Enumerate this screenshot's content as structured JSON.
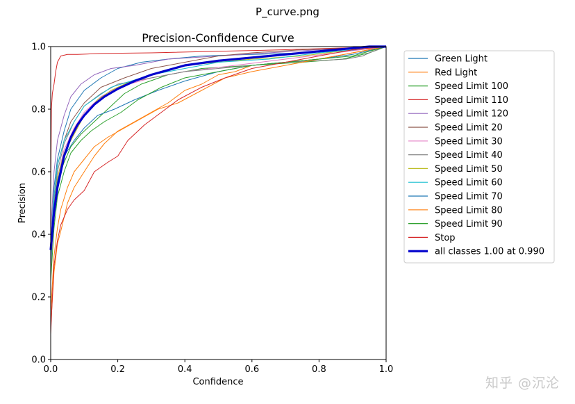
{
  "page": {
    "title": "P_curve.png",
    "watermark": "知乎 @沉沦"
  },
  "chart_data": {
    "type": "line",
    "title": "Precision-Confidence Curve",
    "xlabel": "Confidence",
    "ylabel": "Precision",
    "xlim": [
      0,
      1
    ],
    "ylim": [
      0,
      1
    ],
    "xticks": [
      "0.0",
      "0.2",
      "0.4",
      "0.6",
      "0.8",
      "1.0"
    ],
    "yticks": [
      "0.0",
      "0.2",
      "0.4",
      "0.6",
      "0.8",
      "1.0"
    ],
    "grid": false,
    "legend_position": "outside-right",
    "series": [
      {
        "name": "Green Light",
        "color": "#1f77b4",
        "width": 1,
        "x": [
          0,
          0.01,
          0.02,
          0.04,
          0.06,
          0.1,
          0.15,
          0.2,
          0.27,
          0.35,
          0.45,
          0.6,
          0.75,
          0.85,
          0.92,
          0.99,
          1.0
        ],
        "y": [
          0.35,
          0.55,
          0.64,
          0.73,
          0.8,
          0.86,
          0.9,
          0.93,
          0.95,
          0.96,
          0.97,
          0.975,
          0.98,
          0.985,
          0.99,
          1.0,
          1.0
        ]
      },
      {
        "name": "Red Light",
        "color": "#ff7f0e",
        "width": 1,
        "x": [
          0,
          0.01,
          0.02,
          0.03,
          0.05,
          0.07,
          0.1,
          0.13,
          0.16,
          0.2,
          0.25,
          0.3,
          0.35,
          0.4,
          0.45,
          0.5,
          0.55,
          0.6,
          0.7,
          0.8,
          0.9,
          1.0
        ],
        "y": [
          0.1,
          0.28,
          0.37,
          0.41,
          0.5,
          0.55,
          0.6,
          0.65,
          0.69,
          0.73,
          0.76,
          0.79,
          0.82,
          0.86,
          0.88,
          0.91,
          0.92,
          0.94,
          0.95,
          0.96,
          0.98,
          1.0
        ]
      },
      {
        "name": "Speed Limit 100",
        "color": "#2ca02c",
        "width": 1,
        "x": [
          0,
          0.01,
          0.02,
          0.04,
          0.06,
          0.09,
          0.13,
          0.17,
          0.22,
          0.27,
          0.35,
          0.45,
          0.6,
          0.75,
          0.87,
          0.95,
          1.0
        ],
        "y": [
          0.3,
          0.48,
          0.57,
          0.63,
          0.68,
          0.72,
          0.76,
          0.8,
          0.85,
          0.88,
          0.91,
          0.93,
          0.94,
          0.95,
          0.96,
          0.98,
          1.0
        ]
      },
      {
        "name": "Speed Limit 110",
        "color": "#d62728",
        "width": 1,
        "x": [
          0,
          0.002,
          0.005,
          0.01,
          0.015,
          0.02,
          0.03,
          0.05,
          0.08,
          0.15,
          0.3,
          0.5,
          0.7,
          0.85,
          1.0
        ],
        "y": [
          0.5,
          0.8,
          0.85,
          0.88,
          0.92,
          0.95,
          0.97,
          0.975,
          0.975,
          0.978,
          0.98,
          0.985,
          0.99,
          0.995,
          1.0
        ]
      },
      {
        "name": "Speed Limit 120",
        "color": "#9467bd",
        "width": 1,
        "x": [
          0,
          0.01,
          0.02,
          0.04,
          0.06,
          0.09,
          0.13,
          0.18,
          0.25,
          0.35,
          0.5,
          0.65,
          0.8,
          1.0
        ],
        "y": [
          0.4,
          0.6,
          0.7,
          0.78,
          0.84,
          0.88,
          0.91,
          0.93,
          0.94,
          0.96,
          0.97,
          0.98,
          0.99,
          1.0
        ]
      },
      {
        "name": "Speed Limit 20",
        "color": "#8c564b",
        "width": 1,
        "x": [
          0,
          0.01,
          0.02,
          0.04,
          0.06,
          0.1,
          0.15,
          0.22,
          0.3,
          0.4,
          0.5,
          0.6,
          0.75,
          0.9,
          1.0
        ],
        "y": [
          0.3,
          0.52,
          0.62,
          0.7,
          0.76,
          0.82,
          0.87,
          0.9,
          0.93,
          0.95,
          0.97,
          0.98,
          0.99,
          0.995,
          1.0
        ]
      },
      {
        "name": "Speed Limit 30",
        "color": "#e377c2",
        "width": 1,
        "x": [
          0,
          0.01,
          0.02,
          0.04,
          0.07,
          0.1,
          0.15,
          0.2,
          0.3,
          0.4,
          0.55,
          0.7,
          0.85,
          1.0
        ],
        "y": [
          0.28,
          0.47,
          0.58,
          0.67,
          0.74,
          0.79,
          0.84,
          0.87,
          0.9,
          0.92,
          0.94,
          0.96,
          0.98,
          1.0
        ]
      },
      {
        "name": "Speed Limit 40",
        "color": "#7f7f7f",
        "width": 1,
        "x": [
          0,
          0.01,
          0.02,
          0.04,
          0.07,
          0.1,
          0.15,
          0.2,
          0.3,
          0.4,
          0.5,
          0.6,
          0.7,
          0.8,
          0.88,
          0.93,
          0.95,
          1.0
        ],
        "y": [
          0.3,
          0.5,
          0.6,
          0.69,
          0.76,
          0.81,
          0.85,
          0.88,
          0.9,
          0.92,
          0.93,
          0.94,
          0.95,
          0.955,
          0.96,
          0.97,
          0.98,
          1.0
        ]
      },
      {
        "name": "Speed Limit 50",
        "color": "#bcbd22",
        "width": 1,
        "x": [
          0,
          0.01,
          0.02,
          0.04,
          0.07,
          0.1,
          0.14,
          0.18,
          0.22,
          0.27,
          0.33,
          0.4,
          0.5,
          0.6,
          0.75,
          0.9,
          1.0
        ],
        "y": [
          0.3,
          0.48,
          0.58,
          0.66,
          0.72,
          0.78,
          0.83,
          0.86,
          0.88,
          0.9,
          0.92,
          0.94,
          0.95,
          0.96,
          0.97,
          0.99,
          1.0
        ]
      },
      {
        "name": "Speed Limit 60",
        "color": "#17becf",
        "width": 1,
        "x": [
          0,
          0.01,
          0.02,
          0.04,
          0.07,
          0.1,
          0.14,
          0.18,
          0.24,
          0.3,
          0.4,
          0.5,
          0.65,
          0.8,
          1.0
        ],
        "y": [
          0.32,
          0.52,
          0.62,
          0.7,
          0.76,
          0.81,
          0.84,
          0.87,
          0.89,
          0.91,
          0.93,
          0.95,
          0.96,
          0.98,
          1.0
        ]
      },
      {
        "name": "Speed Limit 70",
        "color": "#1f77b4",
        "width": 1,
        "x": [
          0,
          0.01,
          0.02,
          0.04,
          0.07,
          0.1,
          0.14,
          0.19,
          0.25,
          0.32,
          0.4,
          0.5,
          0.6,
          0.7,
          0.8,
          0.9,
          1.0
        ],
        "y": [
          0.3,
          0.48,
          0.57,
          0.65,
          0.7,
          0.74,
          0.78,
          0.8,
          0.83,
          0.86,
          0.89,
          0.92,
          0.94,
          0.95,
          0.96,
          0.975,
          1.0
        ]
      },
      {
        "name": "Speed Limit 80",
        "color": "#ff7f0e",
        "width": 1,
        "x": [
          0,
          0.01,
          0.02,
          0.03,
          0.05,
          0.07,
          0.1,
          0.13,
          0.17,
          0.22,
          0.27,
          0.32,
          0.38,
          0.45,
          0.52,
          0.6,
          0.7,
          0.8,
          0.9,
          1.0
        ],
        "y": [
          0.15,
          0.33,
          0.42,
          0.48,
          0.55,
          0.6,
          0.64,
          0.68,
          0.71,
          0.74,
          0.77,
          0.8,
          0.82,
          0.86,
          0.9,
          0.92,
          0.94,
          0.96,
          0.98,
          1.0
        ]
      },
      {
        "name": "Speed Limit 90",
        "color": "#2ca02c",
        "width": 1,
        "x": [
          0,
          0.01,
          0.02,
          0.04,
          0.06,
          0.09,
          0.12,
          0.16,
          0.21,
          0.26,
          0.33,
          0.4,
          0.5,
          0.6,
          0.7,
          0.8,
          0.9,
          1.0
        ],
        "y": [
          0.25,
          0.42,
          0.52,
          0.6,
          0.66,
          0.7,
          0.73,
          0.76,
          0.79,
          0.83,
          0.87,
          0.9,
          0.92,
          0.94,
          0.95,
          0.96,
          0.97,
          1.0
        ]
      },
      {
        "name": "Stop",
        "color": "#d62728",
        "width": 1,
        "x": [
          0,
          0.005,
          0.01,
          0.02,
          0.03,
          0.05,
          0.07,
          0.1,
          0.13,
          0.17,
          0.2,
          0.23,
          0.28,
          0.33,
          0.38,
          0.45,
          0.52,
          0.6,
          0.7,
          0.8,
          0.9,
          1.0
        ],
        "y": [
          0.08,
          0.2,
          0.3,
          0.38,
          0.43,
          0.48,
          0.51,
          0.54,
          0.6,
          0.63,
          0.65,
          0.7,
          0.75,
          0.79,
          0.83,
          0.87,
          0.9,
          0.93,
          0.95,
          0.97,
          0.99,
          1.0
        ]
      },
      {
        "name": "all classes 1.00 at 0.990",
        "color": "#0000cc",
        "width": 3.2,
        "x": [
          0,
          0.01,
          0.02,
          0.03,
          0.04,
          0.06,
          0.08,
          0.1,
          0.13,
          0.16,
          0.2,
          0.25,
          0.3,
          0.35,
          0.4,
          0.5,
          0.6,
          0.7,
          0.8,
          0.9,
          0.95,
          0.99,
          1.0
        ],
        "y": [
          0.35,
          0.47,
          0.55,
          0.6,
          0.65,
          0.71,
          0.75,
          0.78,
          0.815,
          0.84,
          0.865,
          0.89,
          0.91,
          0.925,
          0.94,
          0.955,
          0.965,
          0.975,
          0.985,
          0.995,
          1.0,
          1.0,
          1.0
        ]
      }
    ]
  }
}
